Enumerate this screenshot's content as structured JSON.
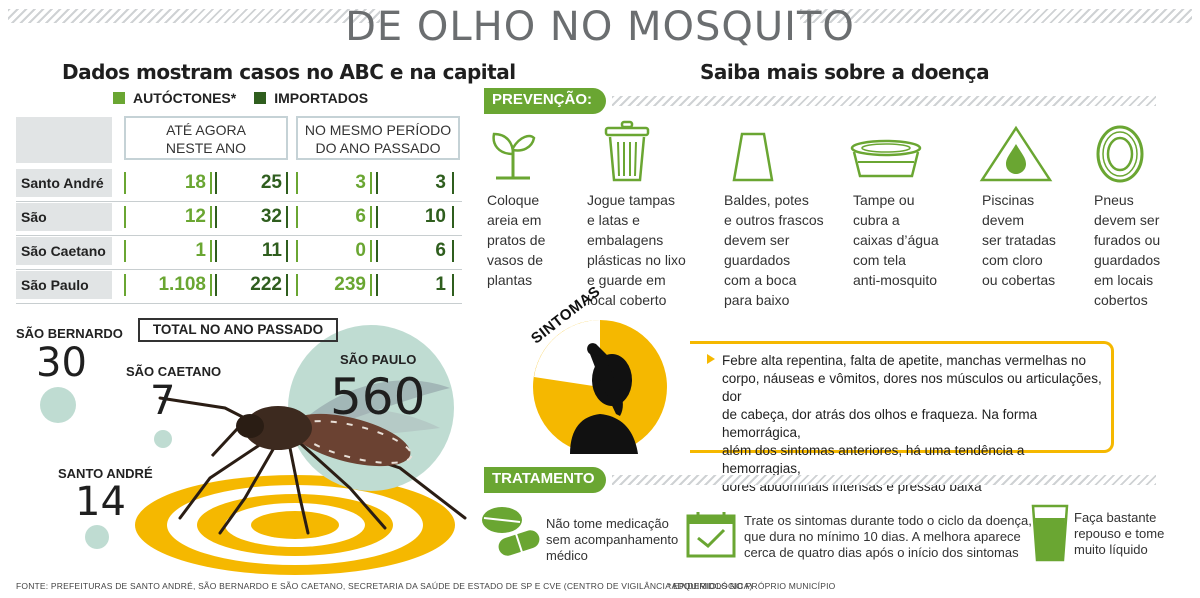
{
  "title": "DE OLHO NO MOSQUITO",
  "left": {
    "subtitle": "Dados mostram casos no ABC e na capital",
    "legend": [
      {
        "label": "AUTÓCTONES*",
        "color": "#6aa632"
      },
      {
        "label": "IMPORTADOS",
        "color": "#2f5e1e"
      }
    ],
    "columns": {
      "current": [
        "ATÉ AGORA",
        "NESTE ANO"
      ],
      "previous": [
        "NO MESMO PERÍODO",
        "DO ANO PASSADO"
      ]
    },
    "rows": [
      {
        "city": "Santo André",
        "values": [
          "18",
          "25",
          "3",
          "3"
        ]
      },
      {
        "city": "São Bernardo",
        "values": [
          "12",
          "32",
          "6",
          "10"
        ]
      },
      {
        "city": "São Caetano",
        "values": [
          "1",
          "11",
          "0",
          "6"
        ]
      },
      {
        "city": "São Paulo",
        "values": [
          "1.108",
          "222",
          "239",
          "1"
        ]
      }
    ],
    "total_label": "TOTAL NO ANO PASSADO",
    "totals": {
      "sao_bernardo": {
        "city": "SÃO BERNARDO",
        "value": "30"
      },
      "sao_caetano": {
        "city": "SÃO CAETANO",
        "value": "7"
      },
      "sao_paulo": {
        "city": "SÃO PAULO",
        "value": "560"
      },
      "santo_andre": {
        "city": "SANTO ANDRÉ",
        "value": "14"
      }
    }
  },
  "right": {
    "subtitle": "Saiba mais sobre a doença",
    "prevention_label": "PREVENÇÃO:",
    "prevention": [
      {
        "icon": "plant-icon",
        "lines": [
          "Coloque",
          "areia em",
          "pratos de",
          "vasos de",
          "plantas"
        ]
      },
      {
        "icon": "trash-can-icon",
        "lines": [
          "Jogue tampas",
          "e latas e",
          "embalagens",
          "plásticas no lixo",
          "e guarde em",
          "local coberto"
        ]
      },
      {
        "icon": "bucket-icon",
        "lines": [
          "Baldes, potes",
          "e outros frascos",
          "devem ser",
          "guardados",
          "com a boca",
          "para baixo"
        ]
      },
      {
        "icon": "water-tank-icon",
        "lines": [
          "Tampe ou",
          "cubra a",
          "caixas d’água",
          "com tela",
          "anti-mosquito"
        ]
      },
      {
        "icon": "pool-drop-icon",
        "lines": [
          "Piscinas",
          "devem",
          "ser tratadas",
          "com cloro",
          "ou cobertas"
        ]
      },
      {
        "icon": "tire-icon",
        "lines": [
          "Pneus",
          "devem ser",
          "furados ou",
          "guardados",
          "em locais",
          "cobertos"
        ]
      }
    ],
    "symptoms_label": "SINTOMAS",
    "symptoms_text": [
      "Febre alta repentina, falta de apetite, manchas vermelhas no",
      "corpo, náuseas e vômitos, dores nos músculos ou articulações, dor",
      "de cabeça, dor atrás dos olhos e fraqueza. Na forma hemorrágica,",
      "além dos sintomas anteriores, há uma tendência a hemorragias,",
      "dores abdominais intensas e pressão baixa"
    ],
    "treatment_label": "TRATAMENTO",
    "treatment": [
      {
        "icon": "pills-icon",
        "lines": [
          "Não tome medicação",
          "sem acompanhamento",
          "médico"
        ]
      },
      {
        "icon": "calendar-icon",
        "lines": [
          "Trate os sintomas durante todo o ciclo da doença,",
          "que dura no mínimo 10 dias. A melhora aparece",
          "cerca de quatro dias após o início dos sintomas"
        ]
      },
      {
        "icon": "glass-icon",
        "lines": [
          "Faça bastante",
          "repouso e tome",
          "muito líquido"
        ]
      }
    ]
  },
  "footer": {
    "source": "FONTE: PREFEITURAS DE SANTO ANDRÉ, SÃO BERNARDO E SÃO CAETANO, SECRETARIA DA SAÚDE DE ESTADO DE SP E CVE (CENTRO DE VIGILÂNCIA EPIDEMIOLÓGICA)",
    "note": "*ADQUIRIDOS NO PRÓPRIO MUNICÍPIO"
  }
}
